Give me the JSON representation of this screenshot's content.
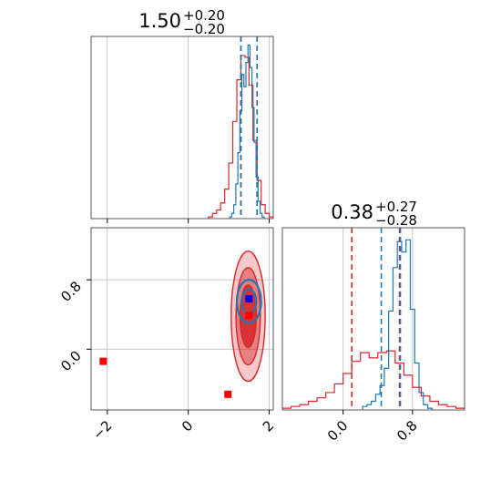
{
  "colors": {
    "red": "#d62728",
    "blue": "#1f77b4",
    "bright_blue": "#0000ff",
    "bright_red": "#ff0000",
    "grid": "#c8c8c8"
  },
  "chart_data": {
    "type": "corner",
    "panel_titles": [
      {
        "value": "1.50",
        "upper": "+0.20",
        "lower": "−0.20"
      },
      {
        "value": "0.38",
        "upper": "+0.27",
        "lower": "−0.28"
      }
    ],
    "x_ticks": {
      "values": [
        -2,
        0,
        2
      ],
      "labels": [
        "−2",
        "0",
        "2"
      ]
    },
    "y_ticks": {
      "values": [
        0.0,
        0.8
      ],
      "labels": [
        "0.0",
        "0.8"
      ]
    },
    "p2_ticks": {
      "values": [
        0.0,
        0.8
      ],
      "labels": [
        "0.0",
        "0.8"
      ]
    },
    "grid": true,
    "ranges": {
      "p1": [
        -2.4,
        2.1
      ],
      "p2": [
        -0.7,
        1.4
      ]
    },
    "diag1_ylim": [
      0,
      1.05
    ],
    "diag2_ylim": [
      0,
      1.05
    ],
    "hist1_red": {
      "x": [
        0.55,
        0.65,
        0.75,
        0.85,
        0.95,
        1.05,
        1.15,
        1.25,
        1.35,
        1.45,
        1.55,
        1.65,
        1.75,
        1.85,
        1.95,
        2.05
      ],
      "y": [
        0.01,
        0.03,
        0.05,
        0.09,
        0.17,
        0.32,
        0.56,
        0.8,
        0.94,
        0.93,
        0.77,
        0.45,
        0.22,
        0.08,
        0.03,
        0.01
      ]
    },
    "hist1_blue": {
      "x": [
        1.05,
        1.1,
        1.15,
        1.2,
        1.25,
        1.3,
        1.35,
        1.4,
        1.45,
        1.5,
        1.55,
        1.6,
        1.65,
        1.7,
        1.75,
        1.8,
        1.85
      ],
      "y": [
        0.01,
        0.03,
        0.08,
        0.2,
        0.38,
        0.62,
        0.83,
        0.76,
        0.9,
        1.0,
        0.87,
        0.64,
        0.44,
        0.24,
        0.1,
        0.03,
        0.01
      ]
    },
    "hist2_red": {
      "x": [
        -0.65,
        -0.55,
        -0.45,
        -0.35,
        -0.25,
        -0.15,
        -0.05,
        0.05,
        0.15,
        0.25,
        0.35,
        0.45,
        0.55,
        0.65,
        0.75,
        0.85,
        0.95,
        1.05,
        1.15,
        1.25,
        1.35
      ],
      "y": [
        0.01,
        0.02,
        0.03,
        0.05,
        0.07,
        0.1,
        0.15,
        0.21,
        0.28,
        0.33,
        0.3,
        0.33,
        0.34,
        0.27,
        0.2,
        0.13,
        0.08,
        0.05,
        0.03,
        0.02,
        0.01
      ]
    },
    "hist2_blue": {
      "x": [
        0.25,
        0.3,
        0.35,
        0.4,
        0.45,
        0.5,
        0.55,
        0.6,
        0.65,
        0.7,
        0.75,
        0.8,
        0.85,
        0.9,
        0.95,
        1.0
      ],
      "y": [
        0.02,
        0.03,
        0.05,
        0.09,
        0.14,
        0.24,
        0.57,
        0.82,
        0.97,
        0.91,
        0.98,
        0.58,
        0.27,
        0.1,
        0.03,
        0.01
      ]
    },
    "quantiles_p1": {
      "red": [
        1.3,
        1.7
      ],
      "blue": [
        1.3,
        1.7
      ]
    },
    "quantiles_p2": {
      "red": [
        0.1,
        0.65
      ],
      "blue": [
        0.44,
        0.66
      ]
    },
    "contours_red": [
      {
        "cx": 1.48,
        "cy": 0.38,
        "rx": 0.42,
        "ry": 0.75,
        "level": "outer"
      },
      {
        "cx": 1.48,
        "cy": 0.38,
        "rx": 0.3,
        "ry": 0.56,
        "level": "middle"
      },
      {
        "cx": 1.48,
        "cy": 0.38,
        "rx": 0.2,
        "ry": 0.36,
        "level": "inner"
      }
    ],
    "contours_blue": [
      {
        "cx": 1.5,
        "cy": 0.55,
        "rx": 0.3,
        "ry": 0.25,
        "level": "outer"
      },
      {
        "cx": 1.5,
        "cy": 0.55,
        "rx": 0.18,
        "ry": 0.14,
        "level": "inner"
      }
    ],
    "markers": [
      {
        "x": 1.5,
        "y": 0.58,
        "color": "blue"
      },
      {
        "x": 1.5,
        "y": 0.39,
        "color": "red"
      },
      {
        "x": -2.1,
        "y": -0.14,
        "color": "red"
      },
      {
        "x": 0.98,
        "y": -0.52,
        "color": "red"
      }
    ]
  }
}
